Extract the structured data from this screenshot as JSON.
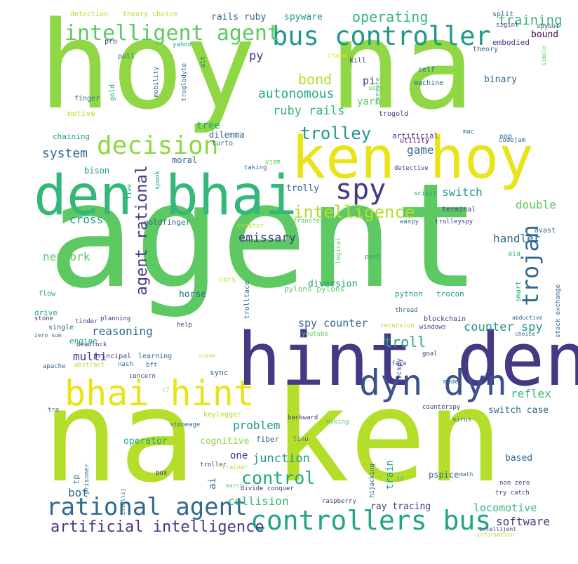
{
  "colors": {
    "background": "#ffffff",
    "lime": "#8fd744",
    "green": "#5ec962",
    "teal_green": "#35b779",
    "teal": "#21a685",
    "cyan": "#1f978b",
    "blue": "#31688e",
    "indigo": "#3b528b",
    "purple": "#443983",
    "dark": "#440154",
    "yellow_green": "#b5de2b",
    "yellow": "#e8e419"
  },
  "words": [
    {
      "text": "agent",
      "color": "#5ec962"
    },
    {
      "text": "hoy na",
      "color": "#8fd744"
    },
    {
      "text": "na ken",
      "color": "#b5de2b"
    },
    {
      "text": "den bhai",
      "color": "#35b779"
    },
    {
      "text": "hint den",
      "color": "#443983"
    },
    {
      "text": "ken hoy",
      "color": "#e8e419"
    },
    {
      "text": "bhai hint",
      "color": "#e8e419"
    },
    {
      "text": "dyn dyn",
      "color": "#3b528b"
    },
    {
      "text": "controllers bus",
      "color": "#21a685"
    },
    {
      "text": "rational agent",
      "color": "#31688e"
    },
    {
      "text": "bus controller",
      "color": "#1f978b"
    },
    {
      "text": "intelligent agent",
      "color": "#5ec962"
    },
    {
      "text": "decision",
      "color": "#8fd744"
    },
    {
      "text": "artificial intelligence",
      "color": "#443983"
    },
    {
      "text": "spy",
      "color": "#443983"
    },
    {
      "text": "intelligence",
      "color": "#b5de2b"
    },
    {
      "text": "trojan",
      "color": "#31688e"
    },
    {
      "text": "agent rational",
      "color": "#443983"
    },
    {
      "text": "trolley",
      "color": "#1f978b"
    },
    {
      "text": "control",
      "color": "#21a685"
    },
    {
      "text": "operating",
      "color": "#35b779"
    },
    {
      "text": "training",
      "color": "#35b779"
    },
    {
      "text": "system",
      "color": "#31688e"
    },
    {
      "text": "bond",
      "color": "#b5de2b"
    },
    {
      "text": "autonomous",
      "color": "#21a685"
    },
    {
      "text": "ruby rails",
      "color": "#35b779"
    },
    {
      "text": "game",
      "color": "#31688e"
    },
    {
      "text": "switch",
      "color": "#1f978b"
    },
    {
      "text": "double",
      "color": "#5ec962"
    },
    {
      "text": "handler",
      "color": "#31688e"
    },
    {
      "text": "emissary",
      "color": "#443983"
    },
    {
      "text": "cross",
      "color": "#1f978b"
    },
    {
      "text": "network",
      "color": "#5ec962"
    },
    {
      "text": "spy counter",
      "color": "#31688e"
    },
    {
      "text": "counter spy",
      "color": "#1f978b"
    },
    {
      "text": "troll",
      "color": "#21a685"
    },
    {
      "text": "reasoning",
      "color": "#31688e"
    },
    {
      "text": "multi",
      "color": "#443983"
    },
    {
      "text": "bot",
      "color": "#31688e"
    },
    {
      "text": "reflex",
      "color": "#35b779"
    },
    {
      "text": "problem",
      "color": "#1f978b"
    },
    {
      "text": "junction",
      "color": "#1f978b"
    },
    {
      "text": "collision",
      "color": "#35b779"
    },
    {
      "text": "software",
      "color": "#443983"
    },
    {
      "text": "locomotive",
      "color": "#35b779"
    },
    {
      "text": "switch case",
      "color": "#31688e"
    },
    {
      "text": "py",
      "color": "#443983"
    },
    {
      "text": "pi",
      "color": "#443983"
    },
    {
      "text": "yarn",
      "color": "#5ec962"
    },
    {
      "text": "bound",
      "color": "#440154"
    },
    {
      "text": "embodied",
      "color": "#443983"
    },
    {
      "text": "binary",
      "color": "#31688e"
    },
    {
      "text": "rails ruby",
      "color": "#31688e"
    },
    {
      "text": "spyware",
      "color": "#1f978b"
    },
    {
      "text": "tree",
      "color": "#21a685"
    },
    {
      "text": "dilemma",
      "color": "#31688e"
    },
    {
      "text": "bison",
      "color": "#1f978b"
    },
    {
      "text": "moral",
      "color": "#31688e"
    },
    {
      "text": "trolly",
      "color": "#31688e"
    },
    {
      "text": "goldfinger",
      "color": "#31688e"
    },
    {
      "text": "horse",
      "color": "#31688e"
    },
    {
      "text": "diversion",
      "color": "#1f978b"
    },
    {
      "text": "pylons pylons",
      "color": "#5ec962"
    },
    {
      "text": "one",
      "color": "#443983"
    },
    {
      "text": "ai",
      "color": "#31688e"
    },
    {
      "text": "operator",
      "color": "#21a685"
    },
    {
      "text": "cognitive",
      "color": "#8fd744"
    },
    {
      "text": "train",
      "color": "#21a685"
    },
    {
      "text": "based",
      "color": "#31688e"
    },
    {
      "text": "pspice",
      "color": "#31688e"
    },
    {
      "text": "ray tracing",
      "color": "#443983"
    },
    {
      "text": "python",
      "color": "#1f978b"
    },
    {
      "text": "trocon",
      "color": "#1f978b"
    },
    {
      "text": "blockchain",
      "color": "#443983"
    },
    {
      "text": "detection",
      "color": "#b5de2b"
    },
    {
      "text": "theory choice",
      "color": "#b5de2b"
    },
    {
      "text": "split",
      "color": "#31688e"
    },
    {
      "text": "sigint",
      "color": "#443983"
    },
    {
      "text": "spybot",
      "color": "#443983"
    },
    {
      "text": "theory",
      "color": "#31688e"
    },
    {
      "text": "pro",
      "color": "#443983"
    },
    {
      "text": "yahoo",
      "color": "#21a685"
    },
    {
      "text": "pull",
      "color": "#31688e"
    },
    {
      "text": "chain",
      "color": "#e8e419"
    },
    {
      "text": "kill",
      "color": "#443983"
    },
    {
      "text": "execute",
      "color": "#35b779"
    },
    {
      "text": "self",
      "color": "#31688e"
    },
    {
      "text": "machine",
      "color": "#31688e"
    },
    {
      "text": "user",
      "color": "#5ec962"
    },
    {
      "text": "trogold",
      "color": "#443983"
    },
    {
      "text": "finger",
      "color": "#31688e"
    },
    {
      "text": "motive",
      "color": "#b5de2b"
    },
    {
      "text": "chaining",
      "color": "#1f978b"
    },
    {
      "text": "turto",
      "color": "#31688e"
    },
    {
      "text": "artificial",
      "color": "#443983"
    },
    {
      "text": "utility",
      "color": "#440154"
    },
    {
      "text": "codejam",
      "color": "#31688e"
    },
    {
      "text": "mac",
      "color": "#31688e"
    },
    {
      "text": "oop",
      "color": "#31688e"
    },
    {
      "text": "detective",
      "color": "#443983"
    },
    {
      "text": "scikit",
      "color": "#21a685"
    },
    {
      "text": "terminal",
      "color": "#443983"
    },
    {
      "text": "avast",
      "color": "#31688e"
    },
    {
      "text": "waspy",
      "color": "#31688e"
    },
    {
      "text": "trolleyspy",
      "color": "#443983"
    },
    {
      "text": "transfer",
      "color": "#5ec962"
    },
    {
      "text": "traktor",
      "color": "#b5de2b"
    },
    {
      "text": "aia",
      "color": "#35b779"
    },
    {
      "text": "smart",
      "color": "#21a685"
    },
    {
      "text": "stack exchange",
      "color": "#31688e"
    },
    {
      "text": "abductive",
      "color": "#31688e"
    },
    {
      "text": "choice",
      "color": "#31688e"
    },
    {
      "text": "push",
      "color": "#21a685"
    },
    {
      "text": "thread",
      "color": "#31688e"
    },
    {
      "text": "recursion",
      "color": "#b5de2b"
    },
    {
      "text": "windows",
      "color": "#443983"
    },
    {
      "text": "goal",
      "color": "#443983"
    },
    {
      "text": "face",
      "color": "#31688e"
    },
    {
      "text": "tcspy",
      "color": "#443983"
    },
    {
      "text": "model",
      "color": "#31688e"
    },
    {
      "text": "counterspy",
      "color": "#443983"
    },
    {
      "text": "virus",
      "color": "#31688e"
    },
    {
      "text": "making",
      "color": "#5ec962"
    },
    {
      "text": "backward",
      "color": "#443983"
    },
    {
      "text": "fiber",
      "color": "#31688e"
    },
    {
      "text": "lino",
      "color": "#31688e"
    },
    {
      "text": "hijacking",
      "color": "#31688e"
    },
    {
      "text": "id",
      "color": "#35b779"
    },
    {
      "text": "math",
      "color": "#31688e"
    },
    {
      "text": "non zero",
      "color": "#443983"
    },
    {
      "text": "try catch",
      "color": "#443983"
    },
    {
      "text": "intellijent",
      "color": "#443983"
    },
    {
      "text": "information",
      "color": "#b5de2b"
    },
    {
      "text": "raspberry",
      "color": "#443983"
    },
    {
      "text": "divide conquer",
      "color": "#443983"
    },
    {
      "text": "marco",
      "color": "#5ec962"
    },
    {
      "text": "trainer",
      "color": "#b5de2b"
    },
    {
      "text": "box",
      "color": "#443983"
    },
    {
      "text": "prisoner",
      "color": "#31688e"
    },
    {
      "text": "tp",
      "color": "#31688e"
    },
    {
      "text": "intellij",
      "color": "#31688e"
    },
    {
      "text": "troller",
      "color": "#443983"
    },
    {
      "text": "keylogger",
      "color": "#b5de2b"
    },
    {
      "text": "stoneage",
      "color": "#31688e"
    },
    {
      "text": "t7",
      "color": "#b5de2b"
    },
    {
      "text": "tro",
      "color": "#31688e"
    },
    {
      "text": "apache",
      "color": "#31688e"
    },
    {
      "text": "abstract",
      "color": "#b5de2b"
    },
    {
      "text": "nash",
      "color": "#31688e"
    },
    {
      "text": "bft",
      "color": "#31688e"
    },
    {
      "text": "concern",
      "color": "#443983"
    },
    {
      "text": "sync",
      "color": "#31688e"
    },
    {
      "text": "scene",
      "color": "#b5de2b"
    },
    {
      "text": "principal",
      "color": "#443983"
    },
    {
      "text": "learning",
      "color": "#31688e"
    },
    {
      "text": "deadlock",
      "color": "#443983"
    },
    {
      "text": "engine",
      "color": "#21a685"
    },
    {
      "text": "zero sum",
      "color": "#31688e"
    },
    {
      "text": "single",
      "color": "#31688e"
    },
    {
      "text": "tinder",
      "color": "#443983"
    },
    {
      "text": "planning",
      "color": "#443983"
    },
    {
      "text": "stone",
      "color": "#443983"
    },
    {
      "text": "drive",
      "color": "#21a685"
    },
    {
      "text": "flow",
      "color": "#21a685"
    },
    {
      "text": "help",
      "color": "#443983"
    },
    {
      "text": "youtube",
      "color": "#5ec962"
    },
    {
      "text": "trolltace",
      "color": "#31688e"
    },
    {
      "text": "cors",
      "color": "#b5de2b"
    },
    {
      "text": "logical",
      "color": "#5ec962"
    },
    {
      "text": "five",
      "color": "#21a685"
    },
    {
      "text": "spook",
      "color": "#21a685"
    },
    {
      "text": "taking",
      "color": "#31688e"
    },
    {
      "text": "yjam",
      "color": "#5ec962"
    },
    {
      "text": "mobility",
      "color": "#31688e"
    },
    {
      "text": "troglodyte",
      "color": "#31688e"
    },
    {
      "text": "alt",
      "color": "#31688e"
    },
    {
      "text": "gold",
      "color": "#21a685"
    },
    {
      "text": "simple",
      "color": "#5ec962"
    }
  ]
}
